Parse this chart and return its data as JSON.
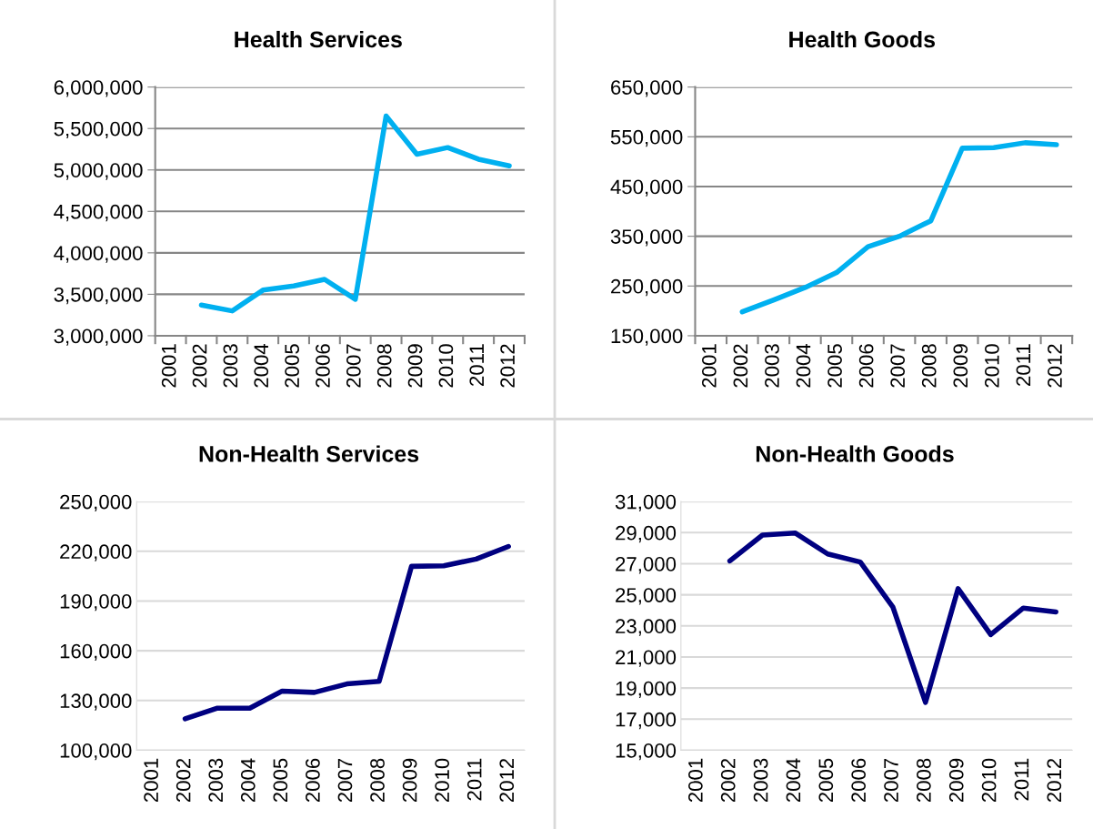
{
  "chart_data": [
    {
      "type": "line",
      "title": "Health Services",
      "categories": [
        "2001",
        "2002",
        "2003",
        "2004",
        "2005",
        "2006",
        "2007",
        "2008",
        "2009",
        "2010",
        "2011",
        "2012"
      ],
      "series": [
        {
          "color": "#00b0f0",
          "values": [
            null,
            3370000,
            3300000,
            3550000,
            3600000,
            3680000,
            3440000,
            5650000,
            5190000,
            5270000,
            5130000,
            5050000
          ]
        }
      ],
      "ylim": [
        3000000,
        6000000
      ],
      "yticks": [
        {
          "value": 3000000,
          "label": "3,000,000"
        },
        {
          "value": 3500000,
          "label": "3,500,000"
        },
        {
          "value": 4000000,
          "label": "4,000,000"
        },
        {
          "value": 4500000,
          "label": "4,500,000"
        },
        {
          "value": 5000000,
          "label": "5,000,000"
        },
        {
          "value": 5500000,
          "label": "5,500,000"
        },
        {
          "value": 6000000,
          "label": "6,000,000"
        }
      ],
      "grid": "y"
    },
    {
      "type": "line",
      "title": "Health Goods",
      "categories": [
        "2001",
        "2002",
        "2003",
        "2004",
        "2005",
        "2006",
        "2007",
        "2008",
        "2009",
        "2010",
        "2011",
        "2012"
      ],
      "series": [
        {
          "color": "#00b0f0",
          "values": [
            null,
            198000,
            222000,
            247000,
            277000,
            329000,
            350000,
            381000,
            527000,
            528000,
            538000,
            534000
          ]
        }
      ],
      "ylim": [
        150000,
        650000
      ],
      "yticks": [
        {
          "value": 150000,
          "label": "150,000"
        },
        {
          "value": 250000,
          "label": "250,000"
        },
        {
          "value": 350000,
          "label": "350,000"
        },
        {
          "value": 450000,
          "label": "450,000"
        },
        {
          "value": 550000,
          "label": "550,000"
        },
        {
          "value": 650000,
          "label": "650,000"
        }
      ],
      "grid": "y"
    },
    {
      "type": "line",
      "title": "Non-Health Services",
      "categories": [
        "2001",
        "2002",
        "2003",
        "2004",
        "2005",
        "2006",
        "2007",
        "2008",
        "2009",
        "2010",
        "2011",
        "2012"
      ],
      "series": [
        {
          "color": "#000080",
          "values": [
            null,
            119000,
            125400,
            125400,
            135700,
            134900,
            140000,
            141600,
            210900,
            211300,
            215300,
            222900
          ]
        }
      ],
      "ylim": [
        100000,
        250000
      ],
      "yticks": [
        {
          "value": 100000,
          "label": "100,000"
        },
        {
          "value": 130000,
          "label": "130,000"
        },
        {
          "value": 160000,
          "label": "160,000"
        },
        {
          "value": 190000,
          "label": "190,000"
        },
        {
          "value": 220000,
          "label": "220,000"
        },
        {
          "value": 250000,
          "label": "250,000"
        }
      ],
      "grid": "y"
    },
    {
      "type": "line",
      "title": "Non-Health Goods",
      "categories": [
        "2001",
        "2002",
        "2003",
        "2004",
        "2005",
        "2006",
        "2007",
        "2008",
        "2009",
        "2010",
        "2011",
        "2012"
      ],
      "series": [
        {
          "color": "#000080",
          "values": [
            null,
            27180,
            28840,
            28980,
            27630,
            27110,
            24210,
            18080,
            25400,
            22440,
            24150,
            23900
          ]
        }
      ],
      "ylim": [
        15000,
        31000
      ],
      "yticks": [
        {
          "value": 15000,
          "label": "15,000"
        },
        {
          "value": 17000,
          "label": "17,000"
        },
        {
          "value": 19000,
          "label": "19,000"
        },
        {
          "value": 21000,
          "label": "21,000"
        },
        {
          "value": 23000,
          "label": "23,000"
        },
        {
          "value": 25000,
          "label": "25,000"
        },
        {
          "value": 27000,
          "label": "27,000"
        },
        {
          "value": 29000,
          "label": "29,000"
        },
        {
          "value": 31000,
          "label": "31,000"
        }
      ],
      "grid": "y"
    }
  ]
}
